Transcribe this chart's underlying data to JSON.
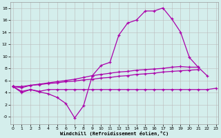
{
  "x_all": [
    0,
    1,
    2,
    3,
    4,
    5,
    6,
    7,
    8,
    9,
    10,
    11,
    12,
    13,
    14,
    15,
    16,
    17,
    18,
    19,
    20,
    21,
    22,
    23
  ],
  "line_flat": [
    5.0,
    4.0,
    4.5,
    4.2,
    4.5,
    4.5,
    4.5,
    4.5,
    4.5,
    4.5,
    4.5,
    4.5,
    4.5,
    4.5,
    4.5,
    4.5,
    4.5,
    4.5,
    4.5,
    4.5,
    4.5,
    4.5,
    4.5,
    4.7
  ],
  "line_wavy": [
    5.0,
    4.2,
    4.5,
    4.1,
    3.8,
    3.2,
    2.2,
    -0.2,
    1.8,
    6.8,
    8.5,
    9.0,
    13.5,
    15.5,
    16.0,
    17.5,
    17.5,
    18.0,
    16.2,
    14.0,
    9.8,
    8.2,
    6.8,
    null
  ],
  "line_rise1": [
    5.0,
    4.8,
    5.2,
    5.4,
    5.6,
    5.8,
    6.0,
    6.2,
    6.5,
    6.8,
    7.0,
    7.2,
    7.4,
    7.5,
    7.7,
    7.8,
    7.9,
    8.0,
    8.2,
    8.3,
    8.2,
    8.2,
    null,
    null
  ],
  "line_rise2": [
    5.0,
    5.0,
    5.2,
    5.3,
    5.5,
    5.6,
    5.8,
    5.9,
    6.1,
    6.2,
    6.4,
    6.5,
    6.7,
    6.8,
    7.0,
    7.1,
    7.2,
    7.4,
    7.5,
    7.6,
    7.7,
    7.8,
    null,
    null
  ],
  "background_color": "#d4eeec",
  "line_color": "#aa00aa",
  "grid_color": "#bbbbbb",
  "xlim": [
    -0.3,
    23.3
  ],
  "ylim": [
    -1.2,
    19.0
  ],
  "xlabel": "Windchill (Refroidissement éolien,°C)",
  "ytick_labels": [
    "18",
    "16",
    "14",
    "12",
    "10",
    "8",
    "6",
    "4",
    "2",
    "-0"
  ],
  "ytick_vals": [
    18,
    16,
    14,
    12,
    10,
    8,
    6,
    4,
    2,
    0
  ],
  "xticks": [
    0,
    1,
    2,
    3,
    4,
    5,
    6,
    7,
    8,
    9,
    10,
    11,
    12,
    13,
    14,
    15,
    16,
    17,
    18,
    19,
    20,
    21,
    22,
    23
  ]
}
